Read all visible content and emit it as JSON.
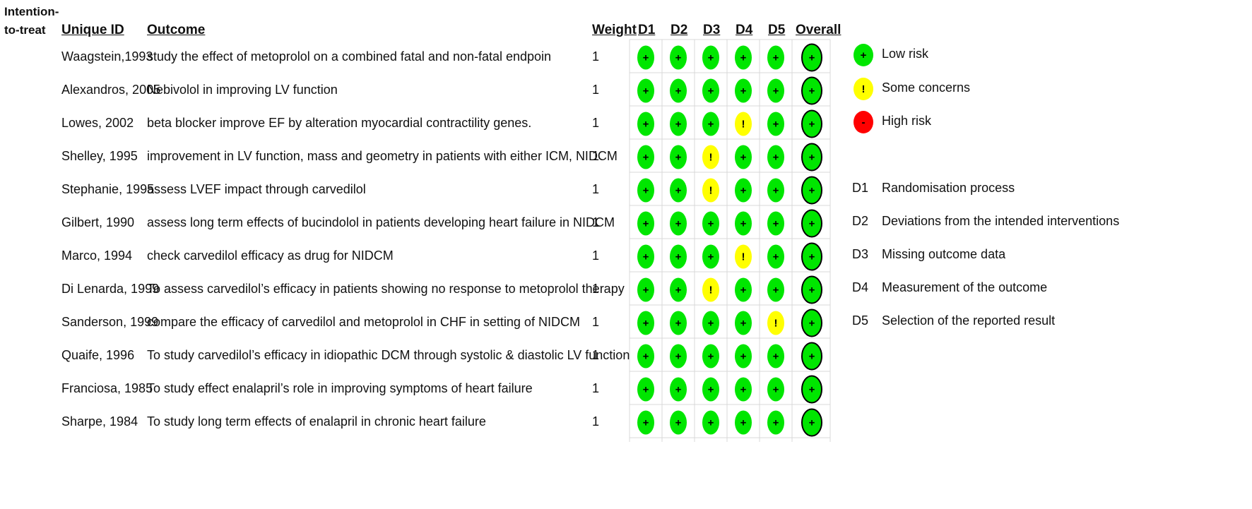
{
  "chart_data": {
    "type": "table",
    "analysis_label": "Intention-\nto-treat",
    "headers": {
      "unique_id": "Unique ID",
      "outcome": "Outcome",
      "weight": "Weight",
      "domains": [
        "D1",
        "D2",
        "D3",
        "D4",
        "D5"
      ],
      "overall": "Overall"
    },
    "rows": [
      {
        "id": "Waagstein,1993",
        "outcome": "study the effect of metoprolol on a combined fatal and non-fatal endpoin",
        "weight": "1",
        "ratings": [
          "low",
          "low",
          "low",
          "low",
          "low"
        ],
        "overall": "low"
      },
      {
        "id": "Alexandros, 2005",
        "outcome": "Nebivolol in improving LV function",
        "weight": "1",
        "ratings": [
          "low",
          "low",
          "low",
          "low",
          "low"
        ],
        "overall": "low"
      },
      {
        "id": "Lowes, 2002",
        "outcome": "beta blocker improve EF by alteration myocardial contractility genes.",
        "weight": "1",
        "ratings": [
          "low",
          "low",
          "low",
          "some",
          "low"
        ],
        "overall": "low"
      },
      {
        "id": "Shelley, 1995",
        "outcome": "improvement in LV function, mass and geometry in patients with either ICM, NIDCM",
        "weight": "1",
        "ratings": [
          "low",
          "low",
          "some",
          "low",
          "low"
        ],
        "overall": "low"
      },
      {
        "id": "Stephanie, 1995",
        "outcome": "assess LVEF impact through carvedilol",
        "weight": "1",
        "ratings": [
          "low",
          "low",
          "some",
          "low",
          "low"
        ],
        "overall": "low"
      },
      {
        "id": "Gilbert, 1990",
        "outcome": "assess long term effects of bucindolol in patients developing heart failure in NIDCM",
        "weight": "1",
        "ratings": [
          "low",
          "low",
          "low",
          "low",
          "low"
        ],
        "overall": "low"
      },
      {
        "id": "Marco, 1994",
        "outcome": "check carvedilol efficacy as drug for NIDCM",
        "weight": "1",
        "ratings": [
          "low",
          "low",
          "low",
          "some",
          "low"
        ],
        "overall": "low"
      },
      {
        "id": "Di Lenarda, 1999",
        "outcome": "To assess carvedilol’s efficacy in patients showing no response to metoprolol therapy",
        "weight": "1",
        "ratings": [
          "low",
          "low",
          "some",
          "low",
          "low"
        ],
        "overall": "low"
      },
      {
        "id": "Sanderson, 1999",
        "outcome": "compare the efficacy of carvedilol and metoprolol in CHF in setting of NIDCM",
        "weight": "1",
        "ratings": [
          "low",
          "low",
          "low",
          "low",
          "some"
        ],
        "overall": "low"
      },
      {
        "id": "Quaife, 1996",
        "outcome": "To study carvedilol’s efficacy in idiopathic DCM through systolic & diastolic LV function",
        "weight": "1",
        "ratings": [
          "low",
          "low",
          "low",
          "low",
          "low"
        ],
        "overall": "low"
      },
      {
        "id": "Franciosa, 1985",
        "outcome": "To study effect enalapril’s role in improving symptoms of heart failure",
        "weight": "1",
        "ratings": [
          "low",
          "low",
          "low",
          "low",
          "low"
        ],
        "overall": "low"
      },
      {
        "id": "Sharpe, 1984",
        "outcome": "To study long term effects of enalapril in chronic heart failure",
        "weight": "1",
        "ratings": [
          "low",
          "low",
          "low",
          "low",
          "low"
        ],
        "overall": "low"
      }
    ],
    "legend_risk": [
      {
        "level": "low",
        "symbol": "+",
        "label": "Low risk"
      },
      {
        "level": "some",
        "symbol": "!",
        "label": "Some concerns"
      },
      {
        "level": "high",
        "symbol": "-",
        "label": "High risk"
      }
    ],
    "legend_domains": [
      {
        "code": "D1",
        "label": "Randomisation process"
      },
      {
        "code": "D2",
        "label": "Deviations from the intended interventions"
      },
      {
        "code": "D3",
        "label": "Missing outcome data"
      },
      {
        "code": "D4",
        "label": "Measurement of the outcome"
      },
      {
        "code": "D5",
        "label": "Selection of the reported result"
      }
    ],
    "colors": {
      "low": "#00e600",
      "some": "#ffff00",
      "high": "#ff0000",
      "grid": "#d9d9d9"
    }
  }
}
